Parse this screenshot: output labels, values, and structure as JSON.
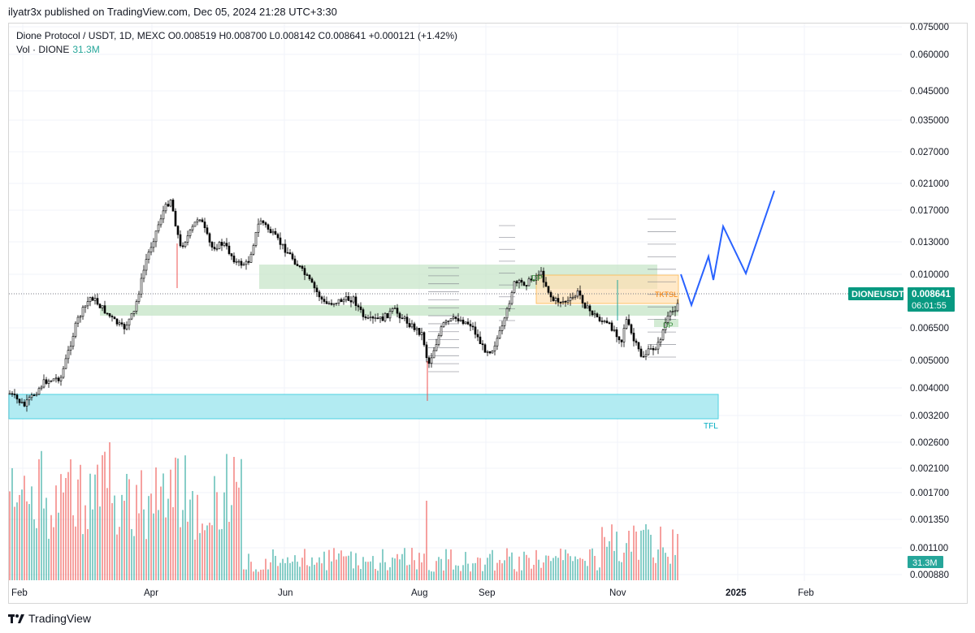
{
  "header": {
    "published_by": "ilyatr3x published on TradingView.com, Dec 05, 2024 21:28 UTC+3:30"
  },
  "legend": {
    "line1": "Dione Protocol / USDT, 1D, MEXC  O0.008519  H0.008700  L0.008142  C0.008641  +0.000121 (+1.42%)",
    "vol_label": "Vol · DIONE",
    "vol_value": "31.3M"
  },
  "price_axis": {
    "ticks": [
      "0.075000",
      "0.060000",
      "0.045000",
      "0.035000",
      "0.027000",
      "0.021000",
      "0.017000",
      "0.013000",
      "0.010000",
      "0.006500",
      "0.005000",
      "0.004000",
      "0.003200",
      "0.002600",
      "0.002100",
      "0.001700",
      "0.001350",
      "0.001100",
      "0.000880"
    ],
    "symbol_tag": "DIONEUSDT",
    "last_price": "0.008641",
    "countdown": "06:01:55",
    "volume_tag": "31.3M"
  },
  "time_axis": {
    "labels": [
      "Feb",
      "Apr",
      "Jun",
      "Aug",
      "Sep",
      "Nov",
      "2025",
      "Feb"
    ]
  },
  "annotations": {
    "tfl": "TFL",
    "dp_top": "DP",
    "tktsl": "TKTSL",
    "dp_bottom": "DP"
  },
  "footer": {
    "brand": "TradingView"
  },
  "colors": {
    "up": "#26a69a",
    "down": "#ef5350",
    "candle_body_up": "#ffffff",
    "candle_body_down": "#000000",
    "zone_green": "#c8e6c9",
    "zone_cyan": "#b2ebf2",
    "zone_orange": "#ffe0b2",
    "projection": "#2962ff"
  }
}
